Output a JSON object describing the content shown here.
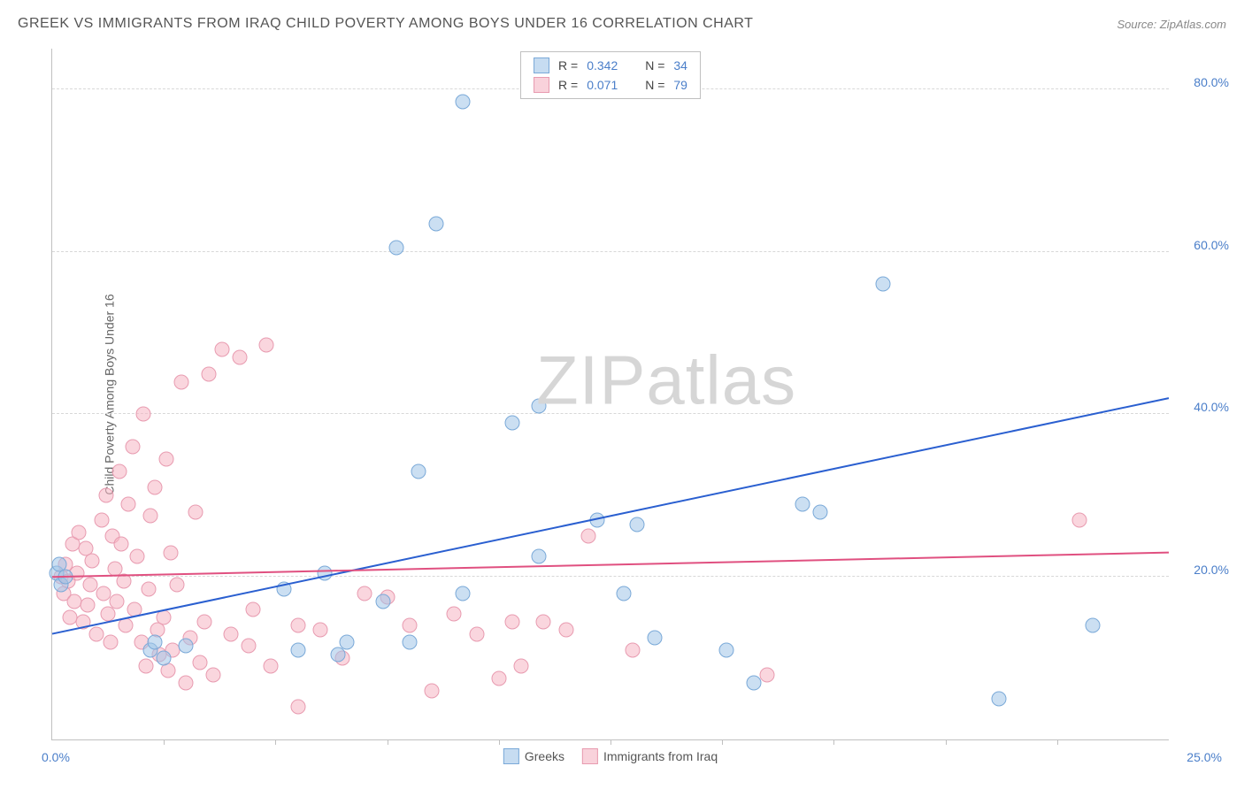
{
  "title": "GREEK VS IMMIGRANTS FROM IRAQ CHILD POVERTY AMONG BOYS UNDER 16 CORRELATION CHART",
  "source": "Source: ZipAtlas.com",
  "ylabel": "Child Poverty Among Boys Under 16",
  "watermark_zip": "ZIP",
  "watermark_atlas": "atlas",
  "chart": {
    "type": "scatter",
    "xlim": [
      0,
      25
    ],
    "ylim": [
      0,
      85
    ],
    "xtick_positions": [
      2.5,
      5,
      7.5,
      10,
      12.5,
      15,
      17.5,
      20,
      22.5
    ],
    "x_left_label": "0.0%",
    "x_right_label": "25.0%",
    "y_gridlines": [
      20,
      40,
      60,
      80
    ],
    "y_labels": [
      "20.0%",
      "40.0%",
      "60.0%",
      "80.0%"
    ],
    "background_color": "#ffffff",
    "grid_color": "#d8d8d8",
    "axis_color": "#c0c0c0",
    "label_color": "#4a7ec9"
  },
  "series": {
    "blue": {
      "label": "Greeks",
      "color_fill": "rgba(160,197,232,0.55)",
      "color_stroke": "#7aa9d8",
      "R": "0.342",
      "N": "34",
      "trend": {
        "x1": 0,
        "y1": 13,
        "x2": 25,
        "y2": 42,
        "color": "#2a5fd0",
        "width": 2
      },
      "points": [
        [
          0.1,
          20.5
        ],
        [
          0.15,
          21.5
        ],
        [
          0.2,
          19
        ],
        [
          0.3,
          20
        ],
        [
          2.2,
          11
        ],
        [
          2.3,
          12
        ],
        [
          2.5,
          10
        ],
        [
          3.0,
          11.5
        ],
        [
          5.2,
          18.5
        ],
        [
          5.5,
          11
        ],
        [
          6.1,
          20.5
        ],
        [
          6.4,
          10.5
        ],
        [
          6.6,
          12
        ],
        [
          7.4,
          17
        ],
        [
          8.0,
          12
        ],
        [
          8.2,
          33
        ],
        [
          7.7,
          60.5
        ],
        [
          8.6,
          63.5
        ],
        [
          9.2,
          18
        ],
        [
          9.2,
          78.5
        ],
        [
          10.3,
          39
        ],
        [
          10.9,
          22.5
        ],
        [
          10.9,
          41
        ],
        [
          12.2,
          27
        ],
        [
          12.8,
          18
        ],
        [
          13.1,
          26.5
        ],
        [
          13.5,
          12.5
        ],
        [
          15.1,
          11
        ],
        [
          15.7,
          7
        ],
        [
          16.8,
          29
        ],
        [
          17.2,
          28
        ],
        [
          18.6,
          56
        ],
        [
          21.2,
          5
        ],
        [
          23.3,
          14
        ]
      ]
    },
    "pink": {
      "label": "Immigrants from Iraq",
      "color_fill": "rgba(245,180,195,0.55)",
      "color_stroke": "#e89bb0",
      "R": "0.071",
      "N": "79",
      "trend": {
        "x1": 0,
        "y1": 20,
        "x2": 25,
        "y2": 23,
        "color": "#e05080",
        "width": 2
      },
      "points": [
        [
          0.2,
          20
        ],
        [
          0.25,
          18
        ],
        [
          0.3,
          21.5
        ],
        [
          0.35,
          19.5
        ],
        [
          0.4,
          15
        ],
        [
          0.45,
          24
        ],
        [
          0.5,
          17
        ],
        [
          0.55,
          20.5
        ],
        [
          0.6,
          25.5
        ],
        [
          0.7,
          14.5
        ],
        [
          0.75,
          23.5
        ],
        [
          0.8,
          16.5
        ],
        [
          0.85,
          19
        ],
        [
          0.9,
          22
        ],
        [
          1.0,
          13
        ],
        [
          1.1,
          27
        ],
        [
          1.15,
          18
        ],
        [
          1.2,
          30
        ],
        [
          1.25,
          15.5
        ],
        [
          1.3,
          12
        ],
        [
          1.35,
          25
        ],
        [
          1.4,
          21
        ],
        [
          1.45,
          17
        ],
        [
          1.5,
          33
        ],
        [
          1.55,
          24
        ],
        [
          1.6,
          19.5
        ],
        [
          1.65,
          14
        ],
        [
          1.7,
          29
        ],
        [
          1.8,
          36
        ],
        [
          1.85,
          16
        ],
        [
          1.9,
          22.5
        ],
        [
          2.0,
          12
        ],
        [
          2.05,
          40
        ],
        [
          2.1,
          9
        ],
        [
          2.15,
          18.5
        ],
        [
          2.2,
          27.5
        ],
        [
          2.3,
          31
        ],
        [
          2.35,
          13.5
        ],
        [
          2.4,
          10.5
        ],
        [
          2.5,
          15
        ],
        [
          2.55,
          34.5
        ],
        [
          2.6,
          8.5
        ],
        [
          2.65,
          23
        ],
        [
          2.7,
          11
        ],
        [
          2.8,
          19
        ],
        [
          2.9,
          44
        ],
        [
          3.0,
          7
        ],
        [
          3.1,
          12.5
        ],
        [
          3.2,
          28
        ],
        [
          3.3,
          9.5
        ],
        [
          3.4,
          14.5
        ],
        [
          3.5,
          45
        ],
        [
          3.6,
          8
        ],
        [
          3.8,
          48
        ],
        [
          4.0,
          13
        ],
        [
          4.2,
          47
        ],
        [
          4.4,
          11.5
        ],
        [
          4.5,
          16
        ],
        [
          4.8,
          48.5
        ],
        [
          4.9,
          9
        ],
        [
          5.5,
          14
        ],
        [
          5.5,
          4
        ],
        [
          6.0,
          13.5
        ],
        [
          6.5,
          10
        ],
        [
          7.0,
          18
        ],
        [
          7.5,
          17.5
        ],
        [
          8.0,
          14
        ],
        [
          8.5,
          6
        ],
        [
          9.0,
          15.5
        ],
        [
          9.5,
          13
        ],
        [
          10.0,
          7.5
        ],
        [
          10.3,
          14.5
        ],
        [
          10.5,
          9
        ],
        [
          11.0,
          14.5
        ],
        [
          11.5,
          13.5
        ],
        [
          12.0,
          25
        ],
        [
          13.0,
          11
        ],
        [
          16.0,
          8
        ],
        [
          23.0,
          27
        ]
      ]
    }
  },
  "legend_bottom": {
    "blue_label": "Greeks",
    "pink_label": "Immigrants from Iraq"
  }
}
